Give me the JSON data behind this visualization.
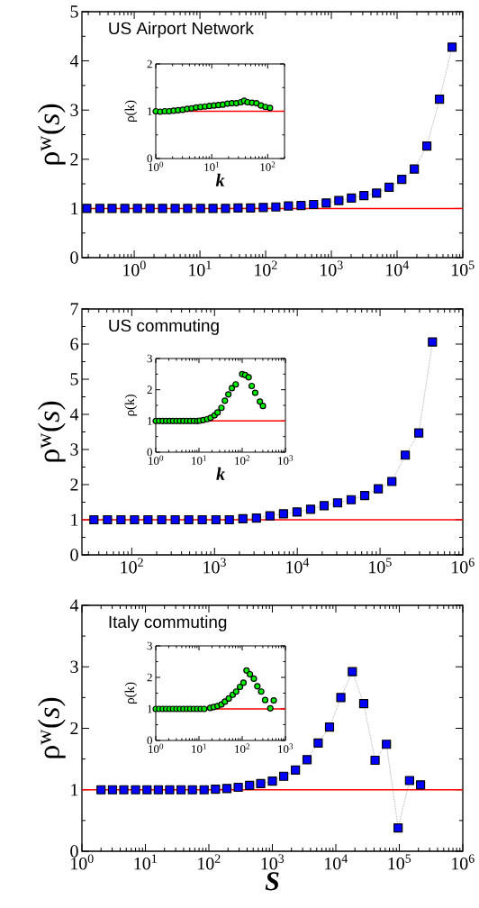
{
  "chart_data": [
    {
      "type": "line",
      "title": "US Airport Network",
      "ylabel": "ρ$^{w}$(*s*)",
      "log": "x",
      "marker": "square",
      "line_style": "dotted",
      "x": [
        0.19,
        0.3,
        0.46,
        0.72,
        1.12,
        1.74,
        2.7,
        4.2,
        6.5,
        10.2,
        15.8,
        24.5,
        38,
        59,
        92,
        143,
        222,
        346,
        537,
        835,
        1300,
        2020,
        3130,
        4870,
        7570,
        11800,
        18300,
        28400,
        44200,
        68700
      ],
      "series": [
        {
          "color": "#0000ff",
          "values": [
            1.0,
            1.0,
            1.0,
            1.0,
            1.0,
            1.0,
            1.0,
            1.0,
            1.0,
            1.0,
            1.0,
            1.0,
            1.01,
            1.01,
            1.02,
            1.03,
            1.05,
            1.06,
            1.08,
            1.11,
            1.16,
            1.21,
            1.26,
            1.31,
            1.43,
            1.59,
            1.8,
            2.27,
            3.22,
            4.28
          ]
        }
      ],
      "xlim": [
        0.16,
        100000
      ],
      "ylim": [
        0,
        5
      ],
      "xticks": [
        {
          "value": 1,
          "label": "10$^{0}$"
        },
        {
          "value": 10,
          "label": "10$^{1}$"
        },
        {
          "value": 100,
          "label": "10$^{2}$"
        },
        {
          "value": 1000,
          "label": "10$^{3}$"
        },
        {
          "value": 10000,
          "label": "10$^{4}$"
        },
        {
          "value": 100000,
          "label": "10$^{5}$"
        }
      ],
      "yticks": [
        0,
        1,
        2,
        3,
        4,
        5
      ],
      "ref_lines": [
        {
          "axis": "y",
          "value": 1,
          "color": "#ff0000"
        }
      ]
    },
    {
      "type": "scatter",
      "xlabel": "k",
      "ylabel": "ρ(k)",
      "log": "x",
      "marker": "circle",
      "x": [
        1,
        1.2,
        1.45,
        1.74,
        2.09,
        2.51,
        3.02,
        3.63,
        4.37,
        5.25,
        6.31,
        7.59,
        9.12,
        11.0,
        13.2,
        15.8,
        19.1,
        22.9,
        27.5,
        33.1,
        38.0,
        43.7,
        52.5,
        63.1,
        75.9,
        91.2,
        110
      ],
      "series": [
        {
          "color": "#00ee00",
          "values": [
            1.0,
            0.99,
            1.0,
            1.0,
            1.01,
            1.02,
            1.03,
            1.05,
            1.06,
            1.08,
            1.09,
            1.1,
            1.11,
            1.12,
            1.13,
            1.14,
            1.16,
            1.17,
            1.17,
            1.19,
            1.22,
            1.19,
            1.18,
            1.17,
            1.12,
            1.09,
            1.07
          ]
        }
      ],
      "xlim": [
        1,
        200
      ],
      "ylim": [
        0,
        2
      ],
      "xticks": [
        {
          "value": 1,
          "label": "10$^{0}$"
        },
        {
          "value": 10,
          "label": "10$^{1}$"
        },
        {
          "value": 100,
          "label": "10$^{2}$"
        }
      ],
      "yticks": [
        0,
        1,
        2
      ],
      "ref_lines": [
        {
          "axis": "y",
          "value": 1,
          "color": "#ff0000"
        }
      ]
    },
    {
      "type": "line",
      "title": "US commuting",
      "ylabel": "ρ$^{w}$(*s*)",
      "log": "x",
      "marker": "square",
      "line_style": "dotted",
      "x": [
        34.9,
        50.9,
        74.1,
        108,
        157,
        230,
        335,
        488,
        711,
        1040,
        1510,
        2200,
        3210,
        4680,
        6810,
        9930,
        14500,
        21100,
        30700,
        44800,
        65300,
        95200,
        139000,
        202000,
        294000,
        430000
      ],
      "series": [
        {
          "color": "#0000ff",
          "values": [
            1.0,
            1.0,
            1.0,
            1.0,
            1.0,
            1.0,
            1.0,
            1.0,
            1.0,
            1.0,
            1.0,
            1.03,
            1.05,
            1.11,
            1.17,
            1.22,
            1.3,
            1.4,
            1.48,
            1.57,
            1.69,
            1.88,
            2.09,
            2.84,
            3.47,
            6.06
          ]
        }
      ],
      "xlim": [
        25,
        1000000
      ],
      "ylim": [
        0,
        7
      ],
      "xticks": [
        {
          "value": 100,
          "label": "10$^{2}$"
        },
        {
          "value": 1000,
          "label": "10$^{3}$"
        },
        {
          "value": 10000,
          "label": "10$^{4}$"
        },
        {
          "value": 100000,
          "label": "10$^{5}$"
        },
        {
          "value": 1000000,
          "label": "10$^{6}$"
        }
      ],
      "yticks": [
        0,
        1,
        2,
        3,
        4,
        5,
        6,
        7
      ],
      "ref_lines": [
        {
          "axis": "y",
          "value": 1,
          "color": "#ff0000"
        }
      ]
    },
    {
      "type": "scatter",
      "xlabel": "k",
      "ylabel": "ρ(k)",
      "log": "x",
      "marker": "circle",
      "x": [
        1,
        1.2,
        1.45,
        1.74,
        2.09,
        2.51,
        3.02,
        3.63,
        4.37,
        5.25,
        6.31,
        7.59,
        9.12,
        10.5,
        12.6,
        15.5,
        18.6,
        22.9,
        26.9,
        33.1,
        39.8,
        47.9,
        57.5,
        70.8,
        100,
        117,
        141,
        166,
        200,
        257,
        302
      ],
      "series": [
        {
          "color": "#00ee00",
          "values": [
            1.0,
            1.0,
            1.0,
            1.0,
            1.0,
            1.0,
            1.0,
            1.0,
            1.0,
            1.0,
            1.0,
            1.0,
            1.0,
            1.01,
            1.03,
            1.06,
            1.1,
            1.18,
            1.27,
            1.42,
            1.65,
            1.85,
            2.05,
            2.17,
            2.5,
            2.47,
            2.4,
            2.12,
            1.9,
            1.62,
            1.48
          ]
        }
      ],
      "xlim": [
        1,
        1000
      ],
      "ylim": [
        0,
        3
      ],
      "xticks": [
        {
          "value": 1,
          "label": "10$^{0}$"
        },
        {
          "value": 10,
          "label": "10$^{1}$"
        },
        {
          "value": 100,
          "label": "10$^{2}$"
        },
        {
          "value": 1000,
          "label": "10$^{3}$"
        }
      ],
      "yticks": [
        0,
        1,
        2,
        3
      ],
      "ref_lines": [
        {
          "axis": "y",
          "value": 1,
          "color": "#ff0000"
        }
      ]
    },
    {
      "type": "line",
      "title": "Italy commuting",
      "xlabel": "S",
      "ylabel": "ρ$^{w}$(*s*)",
      "log": "x",
      "marker": "square",
      "line_style": "dotted",
      "x": [
        2.0,
        3.03,
        4.57,
        6.99,
        10.6,
        16.0,
        24.1,
        36.4,
        55.0,
        84.1,
        127,
        192,
        290,
        438,
        655,
        1000,
        1510,
        2310,
        3520,
        5270,
        7960,
        12000,
        18200,
        27500,
        41500,
        62700,
        95800,
        145000,
        216000
      ],
      "series": [
        {
          "color": "#0000ff",
          "values": [
            1.0,
            1.0,
            1.0,
            1.0,
            1.0,
            1.0,
            1.0,
            1.0,
            1.0,
            1.0,
            1.01,
            1.02,
            1.04,
            1.07,
            1.1,
            1.14,
            1.22,
            1.32,
            1.49,
            1.76,
            2.02,
            2.5,
            2.92,
            2.4,
            1.48,
            1.74,
            0.38,
            1.15,
            1.08
          ]
        }
      ],
      "xlim": [
        1,
        1000000
      ],
      "ylim": [
        0,
        4
      ],
      "xticks": [
        {
          "value": 1,
          "label": "10$^{0}$"
        },
        {
          "value": 10,
          "label": "10$^{1}$"
        },
        {
          "value": 100,
          "label": "10$^{2}$"
        },
        {
          "value": 1000,
          "label": "10$^{3}$"
        },
        {
          "value": 10000,
          "label": "10$^{4}$"
        },
        {
          "value": 100000,
          "label": "10$^{5}$"
        },
        {
          "value": 1000000,
          "label": "10$^{6}$"
        }
      ],
      "yticks": [
        0,
        1,
        2,
        3,
        4
      ],
      "ref_lines": [
        {
          "axis": "y",
          "value": 1,
          "color": "#ff0000"
        }
      ]
    },
    {
      "type": "scatter",
      "ylabel": "ρ(k)",
      "log": "x",
      "marker": "circle",
      "x": [
        1,
        1.2,
        1.45,
        1.74,
        2.09,
        2.51,
        3.02,
        3.63,
        4.37,
        5.25,
        6.31,
        7.59,
        9.12,
        11.0,
        13.2,
        18.2,
        21.9,
        26.9,
        33.1,
        39.8,
        49.0,
        60.3,
        72.4,
        89.1,
        107,
        126,
        151,
        186,
        224,
        275,
        339,
        447,
        537
      ],
      "series": [
        {
          "color": "#00ee00",
          "values": [
            1.0,
            1.0,
            1.0,
            1.0,
            1.0,
            1.0,
            1.0,
            1.0,
            1.0,
            1.0,
            1.0,
            1.0,
            1.0,
            1.0,
            1.0,
            1.03,
            1.06,
            1.09,
            1.14,
            1.23,
            1.33,
            1.45,
            1.55,
            1.7,
            1.83,
            2.22,
            2.1,
            1.96,
            1.72,
            1.55,
            1.28,
            1.02,
            1.27
          ]
        }
      ],
      "xlim": [
        1,
        1000
      ],
      "ylim": [
        0,
        3
      ],
      "xticks": [
        {
          "value": 1,
          "label": "10$^{0}$"
        },
        {
          "value": 10,
          "label": "10$^{1}$"
        },
        {
          "value": 100,
          "label": "10$^{2}$"
        },
        {
          "value": 1000,
          "label": "10$^{3}$"
        }
      ],
      "yticks": [
        0,
        1,
        2,
        3
      ],
      "ref_lines": [
        {
          "axis": "y",
          "value": 1,
          "color": "#ff0000"
        }
      ]
    }
  ]
}
